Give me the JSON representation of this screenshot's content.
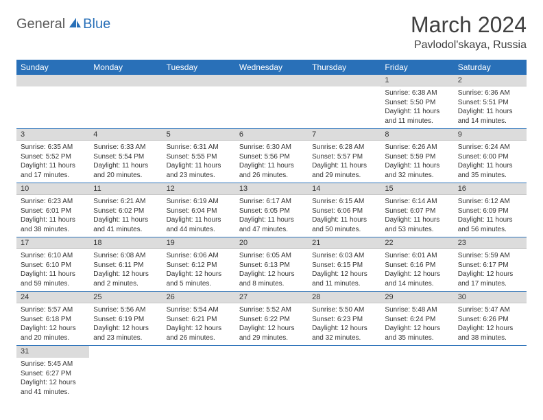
{
  "logo": {
    "text1": "General",
    "text2": "Blue"
  },
  "title": "March 2024",
  "location": "Pavlodol'skaya, Russia",
  "colors": {
    "header_bg": "#2970b8",
    "header_text": "#ffffff",
    "daynum_bg": "#dcdcdc",
    "row_border": "#2970b8",
    "title_color": "#404040",
    "logo_gray": "#5a5a5a",
    "logo_blue": "#2970b8"
  },
  "typography": {
    "title_fontsize": 32,
    "location_fontsize": 16,
    "weekday_fontsize": 12,
    "daynum_fontsize": 11,
    "cell_fontsize": 10
  },
  "weekdays": [
    "Sunday",
    "Monday",
    "Tuesday",
    "Wednesday",
    "Thursday",
    "Friday",
    "Saturday"
  ],
  "weeks": [
    [
      null,
      null,
      null,
      null,
      null,
      {
        "n": "1",
        "sr": "Sunrise: 6:38 AM",
        "ss": "Sunset: 5:50 PM",
        "d1": "Daylight: 11 hours",
        "d2": "and 11 minutes."
      },
      {
        "n": "2",
        "sr": "Sunrise: 6:36 AM",
        "ss": "Sunset: 5:51 PM",
        "d1": "Daylight: 11 hours",
        "d2": "and 14 minutes."
      }
    ],
    [
      {
        "n": "3",
        "sr": "Sunrise: 6:35 AM",
        "ss": "Sunset: 5:52 PM",
        "d1": "Daylight: 11 hours",
        "d2": "and 17 minutes."
      },
      {
        "n": "4",
        "sr": "Sunrise: 6:33 AM",
        "ss": "Sunset: 5:54 PM",
        "d1": "Daylight: 11 hours",
        "d2": "and 20 minutes."
      },
      {
        "n": "5",
        "sr": "Sunrise: 6:31 AM",
        "ss": "Sunset: 5:55 PM",
        "d1": "Daylight: 11 hours",
        "d2": "and 23 minutes."
      },
      {
        "n": "6",
        "sr": "Sunrise: 6:30 AM",
        "ss": "Sunset: 5:56 PM",
        "d1": "Daylight: 11 hours",
        "d2": "and 26 minutes."
      },
      {
        "n": "7",
        "sr": "Sunrise: 6:28 AM",
        "ss": "Sunset: 5:57 PM",
        "d1": "Daylight: 11 hours",
        "d2": "and 29 minutes."
      },
      {
        "n": "8",
        "sr": "Sunrise: 6:26 AM",
        "ss": "Sunset: 5:59 PM",
        "d1": "Daylight: 11 hours",
        "d2": "and 32 minutes."
      },
      {
        "n": "9",
        "sr": "Sunrise: 6:24 AM",
        "ss": "Sunset: 6:00 PM",
        "d1": "Daylight: 11 hours",
        "d2": "and 35 minutes."
      }
    ],
    [
      {
        "n": "10",
        "sr": "Sunrise: 6:23 AM",
        "ss": "Sunset: 6:01 PM",
        "d1": "Daylight: 11 hours",
        "d2": "and 38 minutes."
      },
      {
        "n": "11",
        "sr": "Sunrise: 6:21 AM",
        "ss": "Sunset: 6:02 PM",
        "d1": "Daylight: 11 hours",
        "d2": "and 41 minutes."
      },
      {
        "n": "12",
        "sr": "Sunrise: 6:19 AM",
        "ss": "Sunset: 6:04 PM",
        "d1": "Daylight: 11 hours",
        "d2": "and 44 minutes."
      },
      {
        "n": "13",
        "sr": "Sunrise: 6:17 AM",
        "ss": "Sunset: 6:05 PM",
        "d1": "Daylight: 11 hours",
        "d2": "and 47 minutes."
      },
      {
        "n": "14",
        "sr": "Sunrise: 6:15 AM",
        "ss": "Sunset: 6:06 PM",
        "d1": "Daylight: 11 hours",
        "d2": "and 50 minutes."
      },
      {
        "n": "15",
        "sr": "Sunrise: 6:14 AM",
        "ss": "Sunset: 6:07 PM",
        "d1": "Daylight: 11 hours",
        "d2": "and 53 minutes."
      },
      {
        "n": "16",
        "sr": "Sunrise: 6:12 AM",
        "ss": "Sunset: 6:09 PM",
        "d1": "Daylight: 11 hours",
        "d2": "and 56 minutes."
      }
    ],
    [
      {
        "n": "17",
        "sr": "Sunrise: 6:10 AM",
        "ss": "Sunset: 6:10 PM",
        "d1": "Daylight: 11 hours",
        "d2": "and 59 minutes."
      },
      {
        "n": "18",
        "sr": "Sunrise: 6:08 AM",
        "ss": "Sunset: 6:11 PM",
        "d1": "Daylight: 12 hours",
        "d2": "and 2 minutes."
      },
      {
        "n": "19",
        "sr": "Sunrise: 6:06 AM",
        "ss": "Sunset: 6:12 PM",
        "d1": "Daylight: 12 hours",
        "d2": "and 5 minutes."
      },
      {
        "n": "20",
        "sr": "Sunrise: 6:05 AM",
        "ss": "Sunset: 6:13 PM",
        "d1": "Daylight: 12 hours",
        "d2": "and 8 minutes."
      },
      {
        "n": "21",
        "sr": "Sunrise: 6:03 AM",
        "ss": "Sunset: 6:15 PM",
        "d1": "Daylight: 12 hours",
        "d2": "and 11 minutes."
      },
      {
        "n": "22",
        "sr": "Sunrise: 6:01 AM",
        "ss": "Sunset: 6:16 PM",
        "d1": "Daylight: 12 hours",
        "d2": "and 14 minutes."
      },
      {
        "n": "23",
        "sr": "Sunrise: 5:59 AM",
        "ss": "Sunset: 6:17 PM",
        "d1": "Daylight: 12 hours",
        "d2": "and 17 minutes."
      }
    ],
    [
      {
        "n": "24",
        "sr": "Sunrise: 5:57 AM",
        "ss": "Sunset: 6:18 PM",
        "d1": "Daylight: 12 hours",
        "d2": "and 20 minutes."
      },
      {
        "n": "25",
        "sr": "Sunrise: 5:56 AM",
        "ss": "Sunset: 6:19 PM",
        "d1": "Daylight: 12 hours",
        "d2": "and 23 minutes."
      },
      {
        "n": "26",
        "sr": "Sunrise: 5:54 AM",
        "ss": "Sunset: 6:21 PM",
        "d1": "Daylight: 12 hours",
        "d2": "and 26 minutes."
      },
      {
        "n": "27",
        "sr": "Sunrise: 5:52 AM",
        "ss": "Sunset: 6:22 PM",
        "d1": "Daylight: 12 hours",
        "d2": "and 29 minutes."
      },
      {
        "n": "28",
        "sr": "Sunrise: 5:50 AM",
        "ss": "Sunset: 6:23 PM",
        "d1": "Daylight: 12 hours",
        "d2": "and 32 minutes."
      },
      {
        "n": "29",
        "sr": "Sunrise: 5:48 AM",
        "ss": "Sunset: 6:24 PM",
        "d1": "Daylight: 12 hours",
        "d2": "and 35 minutes."
      },
      {
        "n": "30",
        "sr": "Sunrise: 5:47 AM",
        "ss": "Sunset: 6:26 PM",
        "d1": "Daylight: 12 hours",
        "d2": "and 38 minutes."
      }
    ],
    [
      {
        "n": "31",
        "sr": "Sunrise: 5:45 AM",
        "ss": "Sunset: 6:27 PM",
        "d1": "Daylight: 12 hours",
        "d2": "and 41 minutes."
      },
      null,
      null,
      null,
      null,
      null,
      null
    ]
  ]
}
